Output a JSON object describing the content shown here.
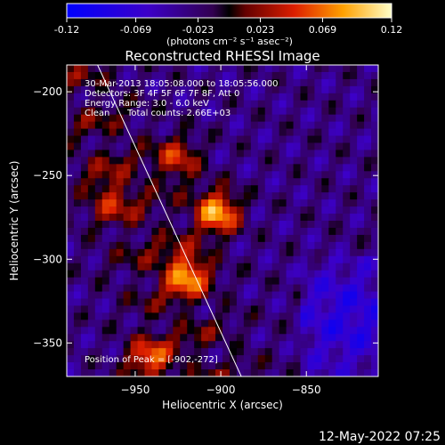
{
  "colorbar": {
    "ticks": [
      {
        "value": -0.12,
        "label": "-0.12"
      },
      {
        "value": -0.069,
        "label": "-0.069"
      },
      {
        "value": -0.023,
        "label": "-0.023"
      },
      {
        "value": 0.023,
        "label": "0.023"
      },
      {
        "value": 0.069,
        "label": "0.069"
      },
      {
        "value": 0.12,
        "label": "0.12"
      }
    ],
    "range": [
      -0.12,
      0.12
    ],
    "units_label": "(photons cm⁻² s⁻¹ asec⁻²)"
  },
  "chart_data": {
    "type": "heatmap",
    "title": "Reconstructed RHESSI Image",
    "xlabel": "Heliocentric X (arcsec)",
    "ylabel": "Heliocentric Y (arcsec)",
    "xlim": [
      -990,
      -808
    ],
    "ylim": [
      -370,
      -184
    ],
    "x_ticks": [
      {
        "value": -950,
        "label": "−950"
      },
      {
        "value": -900,
        "label": "−900"
      },
      {
        "value": -850,
        "label": "−850"
      }
    ],
    "y_ticks": [
      {
        "value": -200,
        "label": "−200"
      },
      {
        "value": -250,
        "label": "−250"
      },
      {
        "value": -300,
        "label": "−300"
      },
      {
        "value": -350,
        "label": "−350"
      }
    ],
    "limb_line": [
      [
        -972,
        -184
      ],
      [
        -888,
        -370
      ]
    ],
    "sources": [
      {
        "x": -902,
        "y": -272,
        "value": 0.12
      },
      {
        "x": -920,
        "y": -308,
        "value": 0.1
      },
      {
        "x": -942,
        "y": -360,
        "value": 0.085
      },
      {
        "x": -925,
        "y": -240,
        "value": 0.07
      },
      {
        "x": -965,
        "y": -262,
        "value": 0.05
      }
    ],
    "annotations": [
      "30-Mar-2013 18:05:08.000 to 18:05:56.000",
      "Detectors: 3F 4F 5F 6F 7F 8F, Att 0",
      "Energy Range: 3.0 - 6.0 keV",
      "Clean",
      "Total counts: 2.66E+03"
    ],
    "peak_label": "Position of Peak = [-902,-272]"
  },
  "timestamp": "12-May-2022 07:25"
}
